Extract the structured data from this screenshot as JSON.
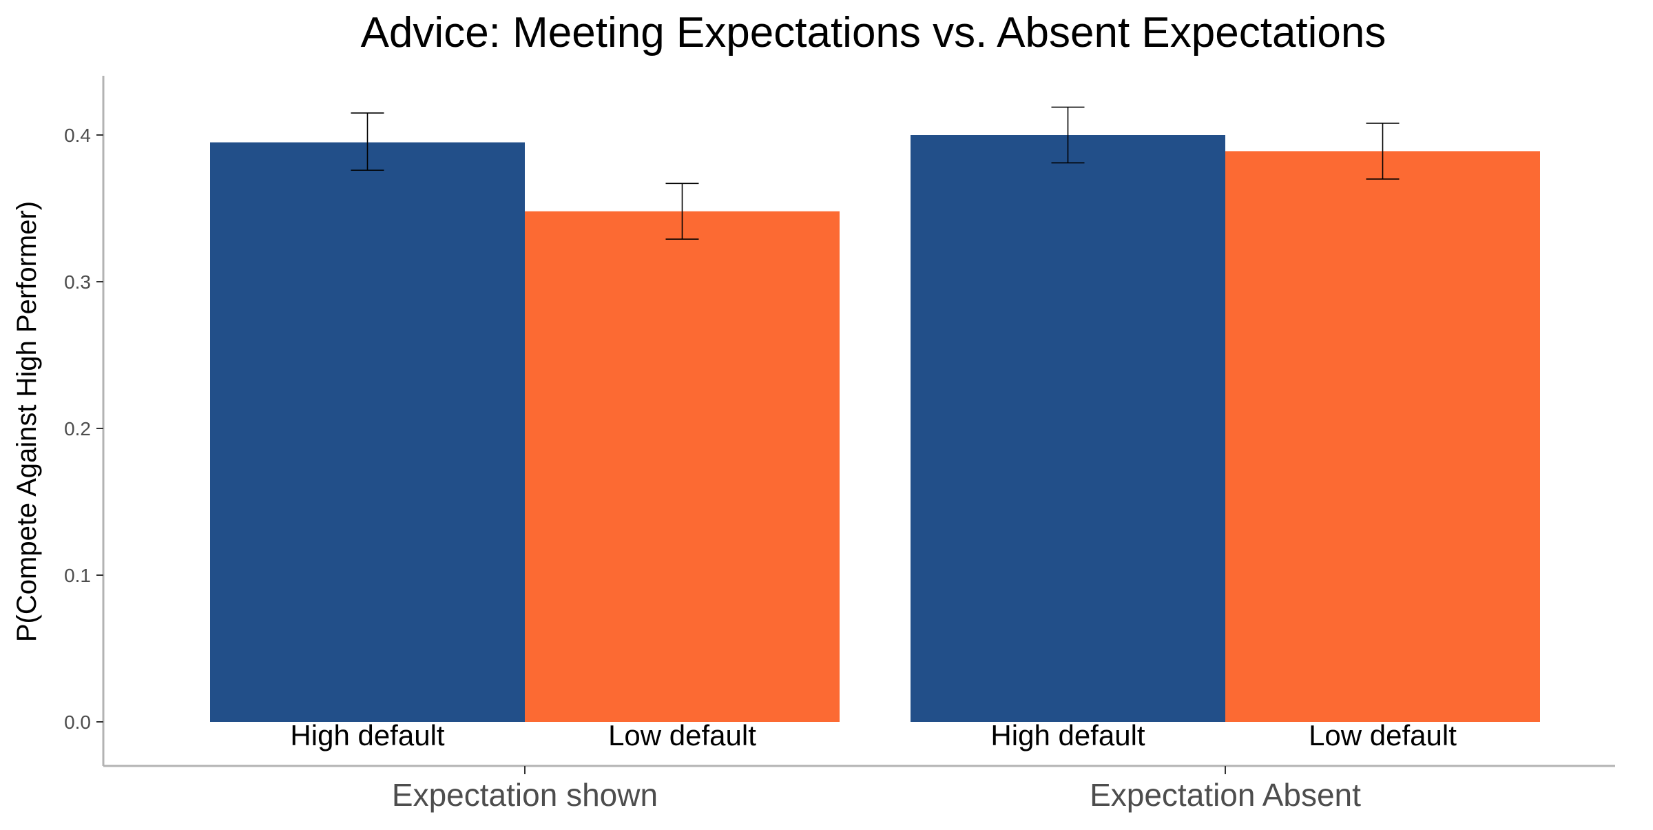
{
  "chart_data": {
    "type": "bar",
    "title": "Advice: Meeting Expectations vs. Absent Expectations",
    "xlabel": "",
    "ylabel": "P(Compete Against High Performer)",
    "ylim": [
      0,
      0.44
    ],
    "y_ticks": [
      "0.0",
      "0.1",
      "0.2",
      "0.3",
      "0.4"
    ],
    "y_tick_values": [
      0,
      0.1,
      0.2,
      0.3,
      0.4
    ],
    "grid": false,
    "legend": "none",
    "categories": [
      "Expectation shown",
      "Expectation Absent"
    ],
    "subcategories": [
      "High default",
      "Low default"
    ],
    "colors": [
      "#224f89",
      "#fc6a33"
    ],
    "error_bar_color": "#000000",
    "axis_color": "#b3b3b3",
    "values": [
      [
        0.395,
        0.348
      ],
      [
        0.4,
        0.389
      ]
    ],
    "error_bars": [
      [
        [
          0.376,
          0.415
        ],
        [
          0.329,
          0.367
        ]
      ],
      [
        [
          0.381,
          0.419
        ],
        [
          0.37,
          0.408
        ]
      ]
    ]
  }
}
